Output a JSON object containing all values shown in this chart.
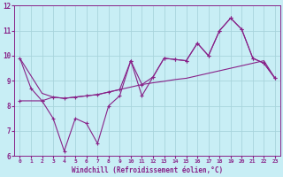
{
  "xlabel": "Windchill (Refroidissement éolien,°C)",
  "bg_color": "#c8eef5",
  "grid_color": "#a8d4dc",
  "line_color": "#882288",
  "xlim": [
    -0.5,
    23.5
  ],
  "ylim": [
    6,
    12
  ],
  "yticks": [
    6,
    7,
    8,
    9,
    10,
    11,
    12
  ],
  "xticks": [
    0,
    1,
    2,
    3,
    4,
    5,
    6,
    7,
    8,
    9,
    10,
    11,
    12,
    13,
    14,
    15,
    16,
    17,
    18,
    19,
    20,
    21,
    22,
    23
  ],
  "line1_x": [
    0,
    1,
    2,
    3,
    4,
    5,
    6,
    7,
    8,
    9,
    10,
    11,
    12,
    13,
    14,
    15,
    16,
    17,
    18,
    19,
    20,
    21,
    22,
    23
  ],
  "line1_y": [
    9.9,
    8.7,
    8.2,
    7.5,
    6.2,
    7.5,
    7.3,
    6.5,
    8.0,
    8.4,
    9.8,
    8.4,
    9.15,
    9.9,
    9.85,
    9.8,
    10.5,
    10.0,
    11.0,
    11.5,
    11.05,
    9.9,
    9.7,
    9.1
  ],
  "line2_x": [
    0,
    1,
    2,
    3,
    4,
    5,
    6,
    7,
    8,
    9,
    10,
    11,
    12,
    13,
    14,
    15,
    16,
    17,
    18,
    19,
    20,
    21,
    22,
    23
  ],
  "line2_y": [
    9.9,
    9.2,
    8.5,
    8.35,
    8.3,
    8.35,
    8.4,
    8.45,
    8.55,
    8.65,
    8.75,
    8.85,
    8.92,
    8.98,
    9.05,
    9.1,
    9.2,
    9.3,
    9.4,
    9.5,
    9.6,
    9.7,
    9.8,
    9.1
  ],
  "line3_x": [
    0,
    2,
    3,
    4,
    5,
    6,
    7,
    8,
    9,
    10,
    11,
    12,
    13,
    14,
    15,
    16,
    17,
    18,
    19,
    20,
    21,
    22,
    23
  ],
  "line3_y": [
    8.2,
    8.2,
    8.35,
    8.3,
    8.35,
    8.4,
    8.45,
    8.55,
    8.65,
    9.8,
    8.85,
    9.15,
    9.9,
    9.85,
    9.8,
    10.5,
    10.0,
    11.0,
    11.5,
    11.05,
    9.9,
    9.7,
    9.1
  ]
}
